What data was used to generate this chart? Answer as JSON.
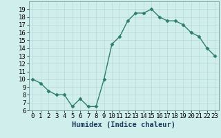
{
  "x": [
    0,
    1,
    2,
    3,
    4,
    5,
    6,
    7,
    8,
    9,
    10,
    11,
    12,
    13,
    14,
    15,
    16,
    17,
    18,
    19,
    20,
    21,
    22,
    23
  ],
  "y": [
    10.0,
    9.5,
    8.5,
    8.0,
    8.0,
    6.5,
    7.5,
    6.5,
    6.5,
    10.0,
    14.5,
    15.5,
    17.5,
    18.5,
    18.5,
    19.0,
    18.0,
    17.5,
    17.5,
    17.0,
    16.0,
    15.5,
    14.0,
    13.0
  ],
  "line_color": "#2e7d6e",
  "marker": "D",
  "marker_size": 2.5,
  "bg_color": "#d0eeec",
  "grid_color": "#b8dbd8",
  "xlabel": "Humidex (Indice chaleur)",
  "xlabel_fontsize": 7.5,
  "tick_fontsize": 6.5,
  "ylim": [
    6,
    20
  ],
  "xlim": [
    -0.5,
    23.5
  ],
  "yticks": [
    6,
    7,
    8,
    9,
    10,
    11,
    12,
    13,
    14,
    15,
    16,
    17,
    18,
    19
  ],
  "xticks": [
    0,
    1,
    2,
    3,
    4,
    5,
    6,
    7,
    8,
    9,
    10,
    11,
    12,
    13,
    14,
    15,
    16,
    17,
    18,
    19,
    20,
    21,
    22,
    23
  ]
}
